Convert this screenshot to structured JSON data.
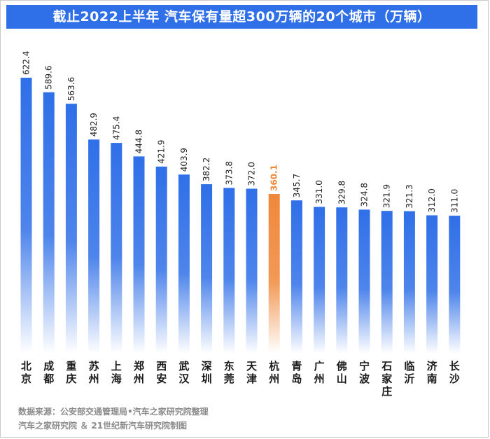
{
  "header": {
    "title": "截止2022上半年 汽车保有量超300万辆的20个城市（万辆）"
  },
  "footer": {
    "source_line1": "数据来源：公安部交通管理局•汽车之家研究院整理",
    "source_line2": "汽车之家研究院 ＆ 21世纪新汽车研究院制图"
  },
  "colors": {
    "title_bg": "#2f6fe8",
    "bar": "#2f6fe8",
    "highlight_bar": "#f0883a",
    "highlight_label": "#f0883a"
  },
  "chart_data": {
    "type": "bar",
    "title": "截止2022上半年 汽车保有量超300万辆的20个城市（万辆）",
    "unit": "万辆",
    "categories": [
      "北京",
      "成都",
      "重庆",
      "苏州",
      "上海",
      "郑州",
      "西安",
      "武汉",
      "深圳",
      "东莞",
      "天津",
      "杭州",
      "青岛",
      "广州",
      "佛山",
      "宁波",
      "石家庄",
      "临沂",
      "济南",
      "长沙"
    ],
    "values": [
      622.4,
      589.6,
      563.6,
      482.9,
      475.4,
      444.8,
      421.9,
      403.9,
      382.2,
      373.8,
      372.0,
      360.1,
      345.7,
      331.0,
      329.8,
      324.8,
      321.9,
      321.3,
      312.0,
      311.0
    ],
    "value_labels": [
      "622.4",
      "589.6",
      "563.6",
      "482.9",
      "475.4",
      "444.8",
      "421.9",
      "403.9",
      "382.2",
      "373.8",
      "372.0",
      "360.1",
      "345.7",
      "331.0",
      "329.8",
      "324.8",
      "321.9",
      "321.3",
      "312.0",
      "311.0"
    ],
    "highlight_category": "杭州",
    "bar_style": "gradient fading to white at bottom",
    "legend": "none",
    "grid": false
  }
}
